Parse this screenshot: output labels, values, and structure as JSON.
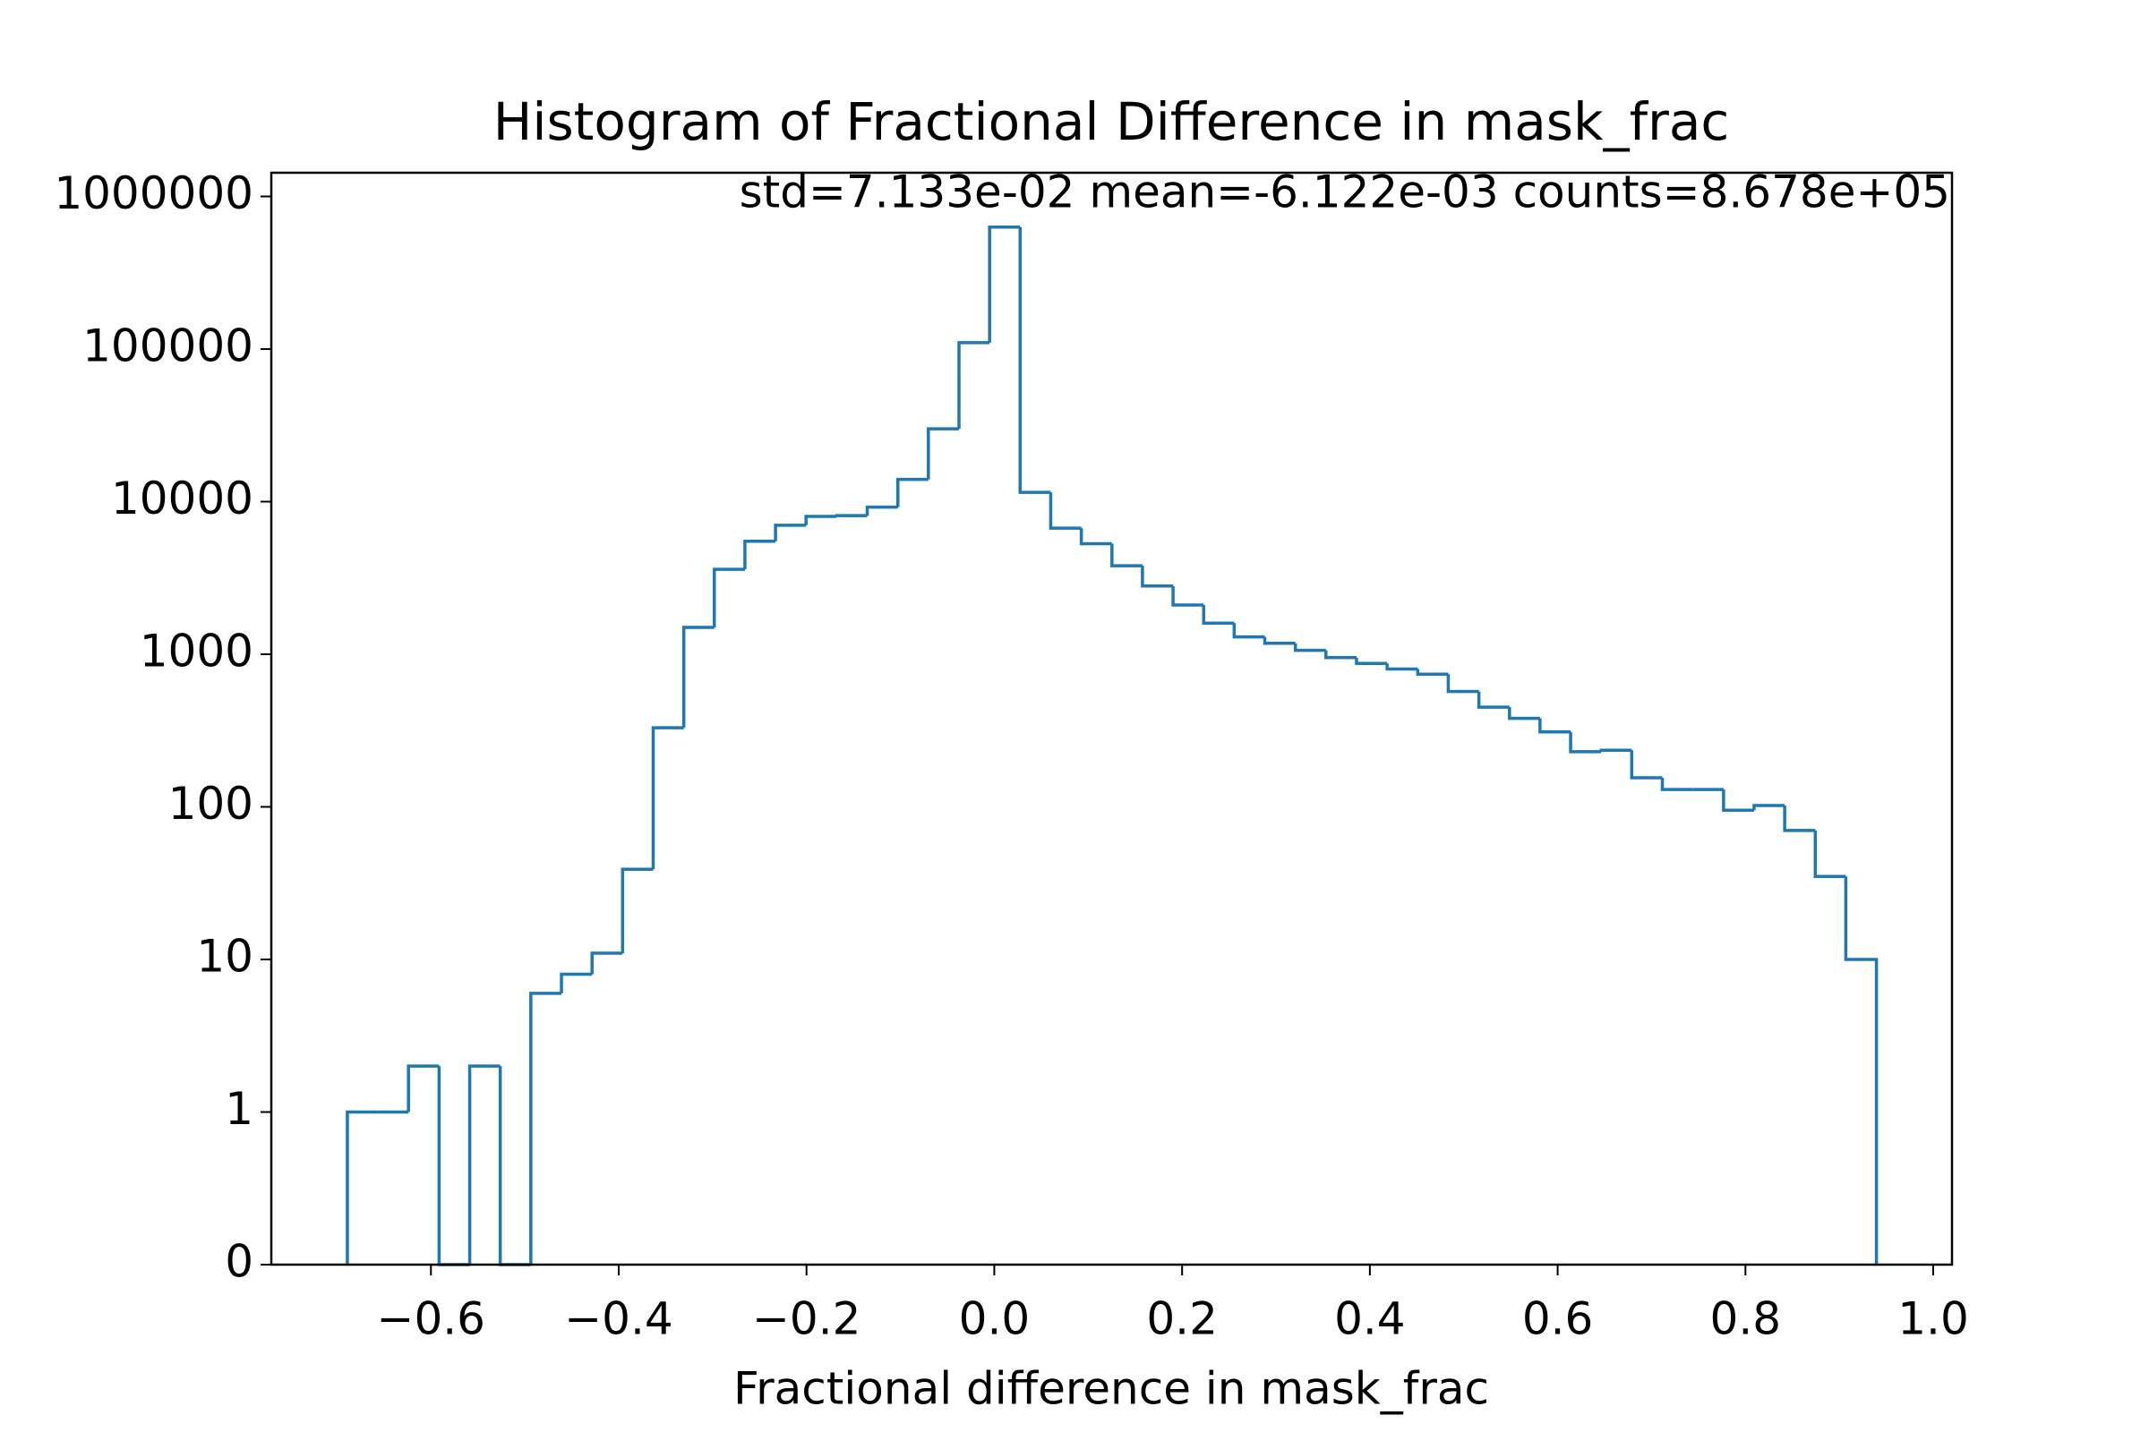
{
  "chart_data": {
    "type": "histogram",
    "title": "Histogram of Fractional Difference in mask_frac",
    "annotation": "std=7.133e-02 mean=-6.122e-03 counts=8.678e+05",
    "x_label": "Fractional difference in mask_frac",
    "color": "#1f77b4",
    "yscale": "symlog",
    "bins": [
      -0.689,
      -0.6564,
      -0.6239,
      -0.5913,
      -0.5587,
      -0.5262,
      -0.4936,
      -0.461,
      -0.4284,
      -0.3959,
      -0.3633,
      -0.3307,
      -0.2982,
      -0.2656,
      -0.233,
      -0.2005,
      -0.1679,
      -0.1353,
      -0.1027,
      -0.0702,
      -0.0376,
      -0.005,
      0.0275,
      0.0601,
      0.0927,
      0.1253,
      0.1578,
      0.1904,
      0.223,
      0.2555,
      0.2881,
      0.3207,
      0.3532,
      0.3858,
      0.4184,
      0.451,
      0.4835,
      0.5161,
      0.5487,
      0.5812,
      0.6138,
      0.6464,
      0.6789,
      0.7115,
      0.7441,
      0.7767,
      0.8092,
      0.8418,
      0.8744,
      0.9069,
      0.9395
    ],
    "counts": [
      1,
      1,
      2,
      0,
      2,
      0,
      6,
      8,
      11,
      39,
      330,
      1500,
      3600,
      5500,
      7000,
      8000,
      8100,
      9200,
      14000,
      30000,
      110000,
      630000,
      11500,
      6700,
      5300,
      3800,
      2800,
      2100,
      1600,
      1300,
      1180,
      1060,
      950,
      870,
      800,
      740,
      570,
      450,
      380,
      310,
      230,
      235,
      155,
      130,
      130,
      95,
      102,
      70,
      35,
      10
    ],
    "xlim": [
      -0.77,
      1.02
    ],
    "ylim": [
      0,
      1430000
    ],
    "xticks": [
      {
        "value": -0.6,
        "label": "−0.6"
      },
      {
        "value": -0.4,
        "label": "−0.4"
      },
      {
        "value": -0.2,
        "label": "−0.2"
      },
      {
        "value": 0.0,
        "label": "0.0"
      },
      0.2,
      0.4,
      0.6,
      0.8,
      {
        "value": 1.0,
        "label": "1.0"
      }
    ],
    "yticks": [
      0,
      1,
      10,
      100,
      1000,
      10000,
      100000,
      1000000
    ]
  }
}
